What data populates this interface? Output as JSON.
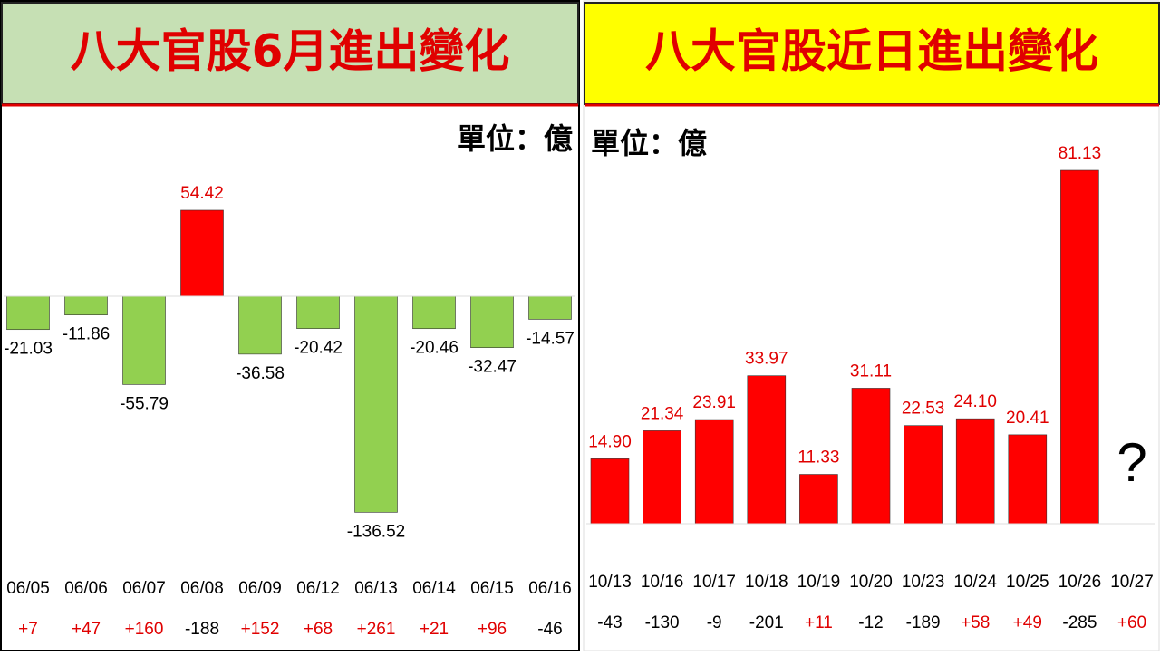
{
  "chart_data": [
    {
      "type": "bar",
      "title": "八大官股6月進出變化",
      "unit_label": "單位：億",
      "categories": [
        "06/05",
        "06/06",
        "06/07",
        "06/08",
        "06/09",
        "06/12",
        "06/13",
        "06/14",
        "06/15",
        "06/16"
      ],
      "values": [
        -21.03,
        -11.86,
        -55.79,
        54.42,
        -36.58,
        -20.42,
        -136.52,
        -20.46,
        -32.47,
        -14.57
      ],
      "secondary_labels": [
        "+7",
        "+47",
        "+160",
        "-188",
        "+152",
        "+68",
        "+261",
        "+21",
        "+96",
        "-46"
      ],
      "positive_color": "#ff0000",
      "negative_color": "#92d050",
      "header_color": "#c6e0b4"
    },
    {
      "type": "bar",
      "title": "八大官股近日進出變化",
      "unit_label": "單位：億",
      "categories": [
        "10/13",
        "10/16",
        "10/17",
        "10/18",
        "10/19",
        "10/20",
        "10/23",
        "10/24",
        "10/25",
        "10/26",
        "10/27"
      ],
      "values": [
        14.9,
        21.34,
        23.91,
        33.97,
        11.33,
        31.11,
        22.53,
        24.1,
        20.41,
        81.13,
        null
      ],
      "value_labels": [
        "14.90",
        "21.34",
        "23.91",
        "33.97",
        "11.33",
        "31.11",
        "22.53",
        "24.10",
        "20.41",
        "81.13",
        null
      ],
      "secondary_labels": [
        "-43",
        "-130",
        "-9",
        "-201",
        "+11",
        "-12",
        "-189",
        "+58",
        "+49",
        "-285",
        "+60"
      ],
      "annotation": "?",
      "positive_color": "#ff0000",
      "negative_color": "#92d050",
      "header_color": "#ffff00"
    }
  ]
}
